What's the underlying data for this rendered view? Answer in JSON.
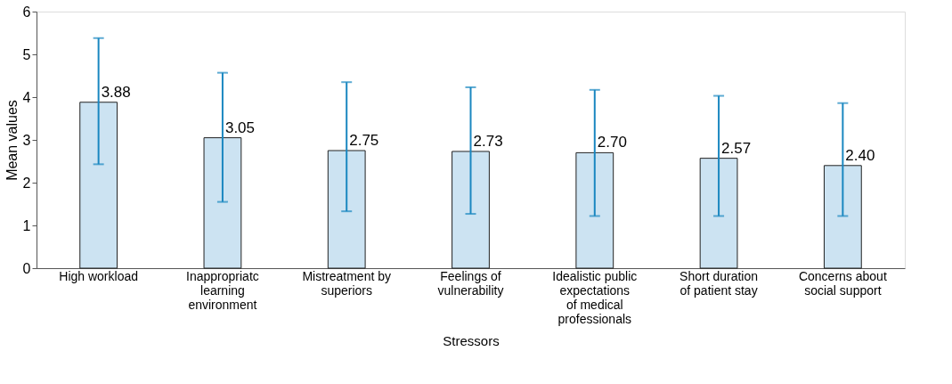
{
  "chart_data": {
    "type": "bar",
    "xlabel": "Stressors",
    "ylabel": "Mean values",
    "categories": [
      "High workload",
      "Inappropriatc\nlearning\nenvironment",
      "Mistreatment by\nsuperiors",
      "Feelings of\nvulnerability",
      "Idealistic public\nexpectations\nof medical\nprofessionals",
      "Short duration\nof patient stay",
      "Concerns about\nsocial support"
    ],
    "values": [
      3.88,
      3.05,
      2.75,
      2.73,
      2.7,
      2.57,
      2.4
    ],
    "errors": [
      [
        2.43,
        5.38
      ],
      [
        1.55,
        4.57
      ],
      [
        1.33,
        4.35
      ],
      [
        1.27,
        4.23
      ],
      [
        1.22,
        4.17
      ],
      [
        1.22,
        4.03
      ],
      [
        1.22,
        3.86
      ]
    ],
    "value_labels": [
      "3.88",
      "3.05",
      "2.75",
      "2.73",
      "2.70",
      "2.57",
      "2.40"
    ],
    "color": "#cce3f2",
    "ylim": [
      0,
      6
    ],
    "yticks": [
      0,
      1,
      2,
      3,
      4,
      5,
      6
    ],
    "grid": false
  }
}
